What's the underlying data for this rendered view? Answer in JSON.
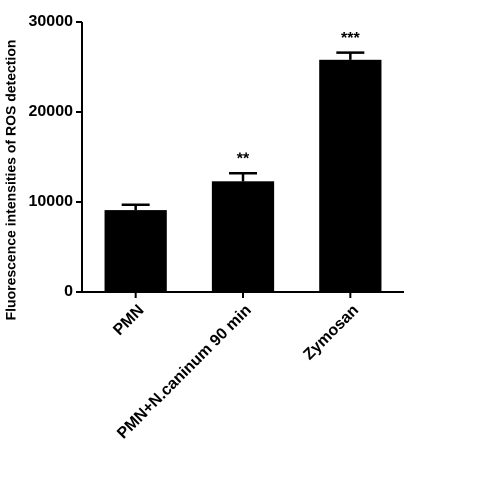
{
  "chart_data": {
    "type": "bar",
    "y_label": "Fluorescence intensities of ROS detection",
    "categories": [
      "PMN",
      "PMN+N.caninum 90 min",
      "Zymosan"
    ],
    "values": [
      9100,
      12300,
      25800
    ],
    "errors": [
      600,
      900,
      800
    ],
    "annotations": [
      null,
      "**",
      "***"
    ],
    "color": "#000000",
    "ylim": [
      0,
      30000
    ],
    "yticks": [
      0,
      10000,
      20000,
      30000
    ],
    "grid": false
  }
}
